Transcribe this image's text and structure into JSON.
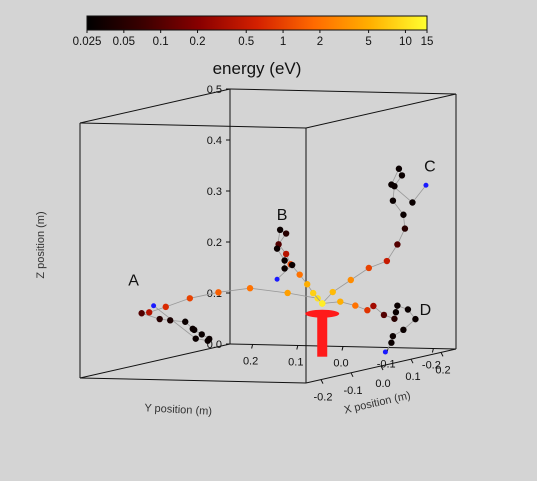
{
  "chart_data": {
    "type": "scatter3d",
    "colorbar": {
      "label": "energy (eV)",
      "scale": "log",
      "range": [
        0.025,
        15
      ],
      "ticks": [
        0.025,
        0.05,
        0.1,
        0.2,
        0.5,
        1,
        2,
        5,
        10,
        15
      ],
      "tick_labels": [
        "0.025",
        "0.05",
        "0.1",
        "0.2",
        "0.5",
        "1",
        "2",
        "5",
        "10",
        "15"
      ],
      "colormap": [
        "#000000",
        "#3c0000",
        "#8a0000",
        "#d42000",
        "#ff6a00",
        "#ffb000",
        "#ffff30"
      ]
    },
    "axes": {
      "x": {
        "label": "X position (m)",
        "range": [
          -0.25,
          0.25
        ],
        "ticks": [
          -0.2,
          -0.1,
          0.0,
          0.1,
          0.2
        ],
        "tick_labels": [
          "-0.2",
          "-0.1",
          "0.0",
          "0.1",
          "0.2"
        ]
      },
      "y": {
        "label": "Y position (m)",
        "range": [
          -0.25,
          0.25
        ],
        "ticks": [
          0.2,
          0.1,
          0.0,
          -0.1,
          -0.2
        ],
        "tick_labels": [
          "0.2",
          "0.1",
          "0.0",
          "-0.1",
          "-0.2"
        ]
      },
      "z": {
        "label": "Z position (m)",
        "range": [
          0,
          0.5
        ],
        "ticks": [
          0.0,
          0.1,
          0.2,
          0.3,
          0.4,
          0.5
        ],
        "tick_labels": [
          "0.0",
          "0.1",
          "0.2",
          "0.3",
          "0.4",
          "0.5"
        ]
      }
    },
    "source": {
      "x": 0.0,
      "y": -0.12,
      "z_bottom": 0.0,
      "z_top": 0.1,
      "color": "#ff1a1a"
    },
    "track_color": "#999999",
    "end_color": "#1a1aff",
    "tracks": [
      {
        "label": "A",
        "points": [
          {
            "x": 0.0,
            "y": -0.11,
            "z": 0.13,
            "e": 10
          },
          {
            "x": -0.04,
            "y": -0.07,
            "z": 0.145,
            "e": 4
          },
          {
            "x": -0.09,
            "y": -0.02,
            "z": 0.16,
            "e": 2
          },
          {
            "x": -0.12,
            "y": 0.03,
            "z": 0.155,
            "e": 1.5
          },
          {
            "x": -0.14,
            "y": 0.08,
            "z": 0.145,
            "e": 1
          },
          {
            "x": -0.16,
            "y": 0.12,
            "z": 0.13,
            "e": 0.7
          },
          {
            "x": -0.17,
            "y": 0.15,
            "z": 0.12,
            "e": 0.4
          },
          {
            "x": -0.15,
            "y": 0.18,
            "z": 0.115,
            "e": 0.1
          },
          {
            "x": -0.12,
            "y": 0.16,
            "z": 0.1,
            "e": 0.05
          },
          {
            "x": -0.1,
            "y": 0.15,
            "z": 0.095,
            "e": 0.04
          },
          {
            "x": -0.08,
            "y": 0.13,
            "z": 0.09,
            "e": 0.03
          },
          {
            "x": -0.07,
            "y": 0.12,
            "z": 0.075,
            "e": 0.03
          },
          {
            "x": -0.05,
            "y": 0.13,
            "z": 0.07,
            "e": 0.03
          },
          {
            "x": -0.04,
            "y": 0.12,
            "z": 0.06,
            "e": 0.03
          },
          {
            "x": -0.03,
            "y": 0.11,
            "z": 0.05,
            "e": 0.03
          },
          {
            "x": -0.02,
            "y": 0.12,
            "z": 0.045,
            "e": 0.03
          },
          {
            "x": -0.03,
            "y": 0.14,
            "z": 0.05,
            "e": 0.03
          },
          {
            "x": -0.08,
            "y": 0.2,
            "z": 0.12,
            "e": 0.03
          }
        ]
      },
      {
        "label": "B",
        "points": [
          {
            "x": 0.0,
            "y": -0.12,
            "z": 0.12,
            "e": 12
          },
          {
            "x": 0.0,
            "y": -0.1,
            "z": 0.14,
            "e": 8
          },
          {
            "x": -0.02,
            "y": -0.1,
            "z": 0.16,
            "e": 5
          },
          {
            "x": -0.03,
            "y": -0.09,
            "z": 0.18,
            "e": 2
          },
          {
            "x": -0.03,
            "y": -0.07,
            "z": 0.2,
            "e": 1
          },
          {
            "x": -0.03,
            "y": -0.06,
            "z": 0.22,
            "e": 0.4
          },
          {
            "x": -0.04,
            "y": -0.05,
            "z": 0.24,
            "e": 0.1
          },
          {
            "x": -0.03,
            "y": -0.06,
            "z": 0.26,
            "e": 0.05
          },
          {
            "x": -0.05,
            "y": -0.06,
            "z": 0.27,
            "e": 0.03
          },
          {
            "x": -0.03,
            "y": -0.04,
            "z": 0.23,
            "e": 0.03
          },
          {
            "x": -0.05,
            "y": -0.07,
            "z": 0.21,
            "e": 0.03
          },
          {
            "x": -0.02,
            "y": -0.05,
            "z": 0.19,
            "e": 0.03
          },
          {
            "x": -0.04,
            "y": -0.08,
            "z": 0.2,
            "e": 0.03
          },
          {
            "x": -0.03,
            "y": -0.04,
            "z": 0.17,
            "e": 0.03
          }
        ]
      },
      {
        "label": "C",
        "points": [
          {
            "x": 0.0,
            "y": -0.12,
            "z": 0.12,
            "e": 12
          },
          {
            "x": 0.02,
            "y": -0.13,
            "z": 0.14,
            "e": 6
          },
          {
            "x": 0.05,
            "y": -0.15,
            "z": 0.16,
            "e": 3
          },
          {
            "x": 0.08,
            "y": -0.17,
            "z": 0.18,
            "e": 1
          },
          {
            "x": 0.11,
            "y": -0.19,
            "z": 0.19,
            "e": 0.5
          },
          {
            "x": 0.13,
            "y": -0.2,
            "z": 0.22,
            "e": 0.1
          },
          {
            "x": 0.14,
            "y": -0.21,
            "z": 0.25,
            "e": 0.05
          },
          {
            "x": 0.12,
            "y": -0.22,
            "z": 0.28,
            "e": 0.03
          },
          {
            "x": 0.1,
            "y": -0.21,
            "z": 0.31,
            "e": 0.03
          },
          {
            "x": 0.09,
            "y": -0.22,
            "z": 0.34,
            "e": 0.03
          },
          {
            "x": 0.1,
            "y": -0.23,
            "z": 0.36,
            "e": 0.03
          },
          {
            "x": 0.12,
            "y": -0.21,
            "z": 0.37,
            "e": 0.03
          },
          {
            "x": 0.11,
            "y": -0.2,
            "z": 0.34,
            "e": 0.03
          },
          {
            "x": 0.15,
            "y": -0.22,
            "z": 0.3,
            "e": 0.03
          },
          {
            "x": 0.18,
            "y": -0.23,
            "z": 0.33,
            "e": 0.03
          }
        ]
      },
      {
        "label": "D",
        "points": [
          {
            "x": 0.0,
            "y": -0.12,
            "z": 0.12,
            "e": 12
          },
          {
            "x": 0.03,
            "y": -0.14,
            "z": 0.12,
            "e": 5
          },
          {
            "x": 0.05,
            "y": -0.16,
            "z": 0.11,
            "e": 2
          },
          {
            "x": 0.06,
            "y": -0.18,
            "z": 0.1,
            "e": 0.8
          },
          {
            "x": 0.05,
            "y": -0.2,
            "z": 0.11,
            "e": 0.3
          },
          {
            "x": 0.07,
            "y": -0.21,
            "z": 0.09,
            "e": 0.1
          },
          {
            "x": 0.09,
            "y": -0.22,
            "z": 0.08,
            "e": 0.05
          },
          {
            "x": 0.11,
            "y": -0.21,
            "z": 0.09,
            "e": 0.03
          },
          {
            "x": 0.13,
            "y": -0.2,
            "z": 0.1,
            "e": 0.03
          },
          {
            "x": 0.15,
            "y": -0.21,
            "z": 0.09,
            "e": 0.03
          },
          {
            "x": 0.16,
            "y": -0.22,
            "z": 0.07,
            "e": 0.03
          },
          {
            "x": 0.15,
            "y": -0.2,
            "z": 0.05,
            "e": 0.03
          },
          {
            "x": 0.13,
            "y": -0.19,
            "z": 0.04,
            "e": 0.03
          },
          {
            "x": 0.11,
            "y": -0.2,
            "z": 0.03,
            "e": 0.03
          },
          {
            "x": 0.12,
            "y": -0.18,
            "z": 0.01,
            "e": 0.03
          }
        ]
      }
    ]
  }
}
